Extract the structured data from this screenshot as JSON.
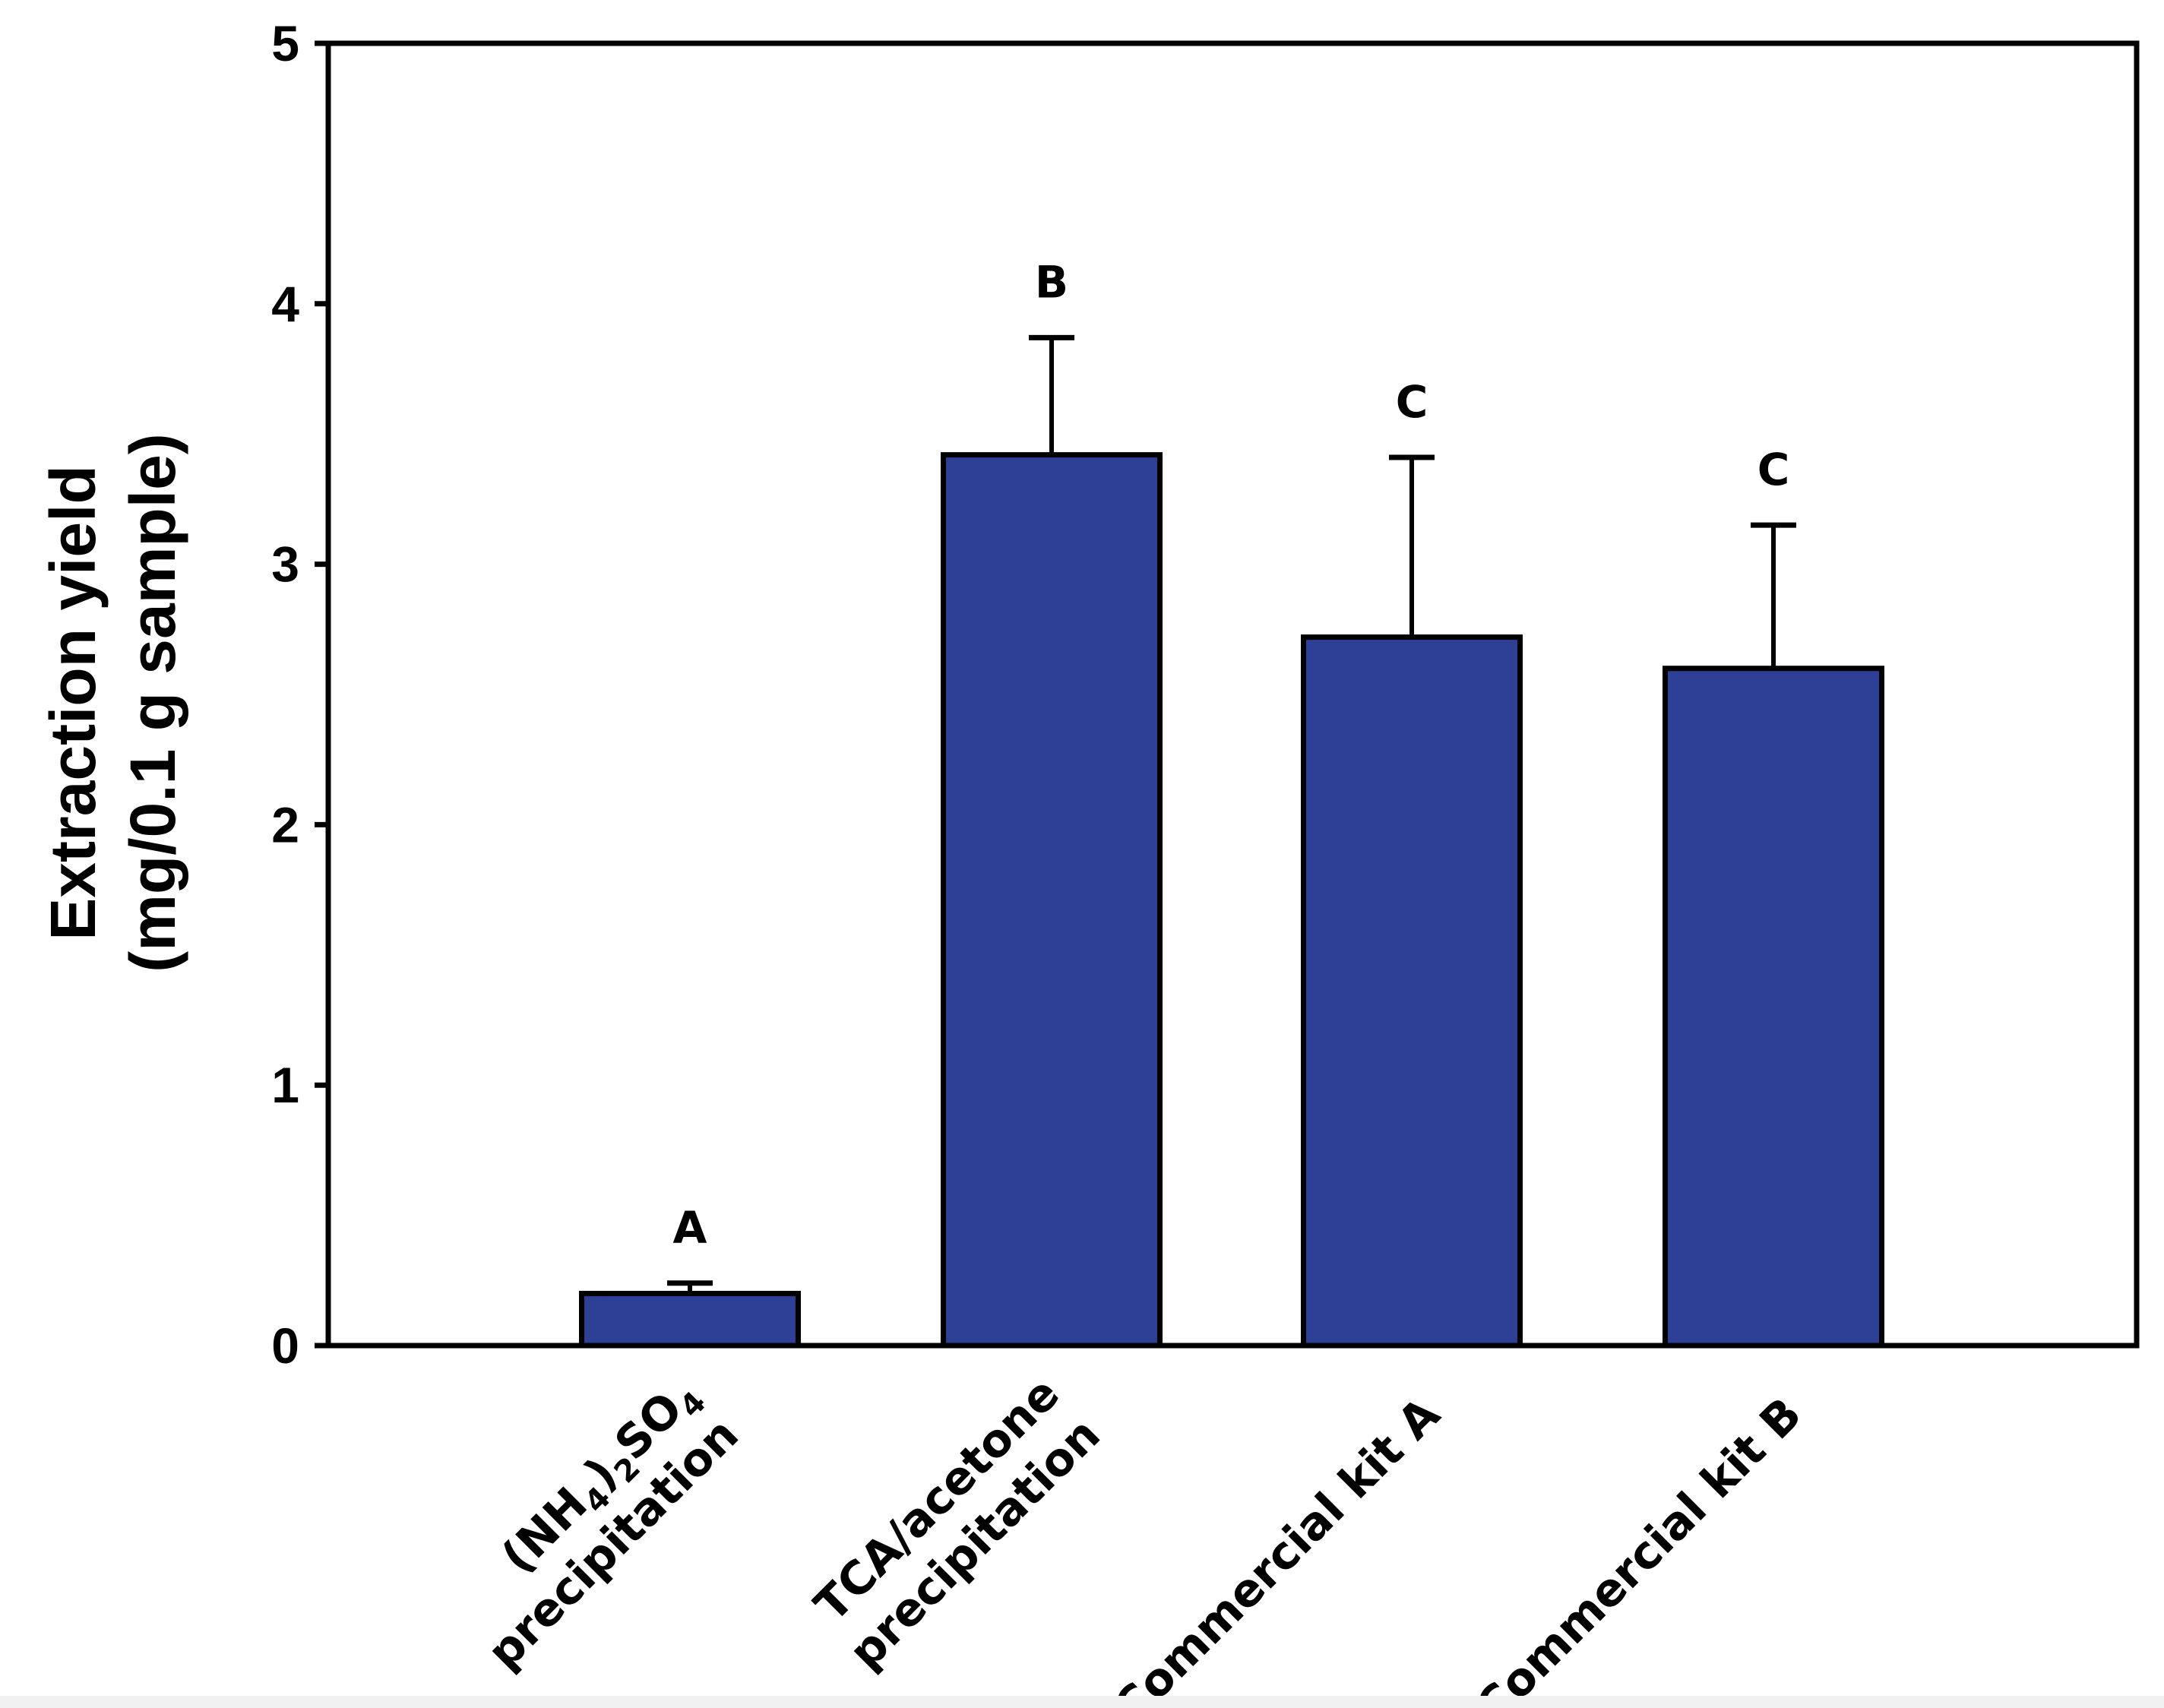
{
  "chart_data": {
    "type": "bar",
    "title": "",
    "xlabel": "",
    "ylabel_line1": "Extraction yield",
    "ylabel_line2": "(mg/0.1 g sample)",
    "ylim": [
      0,
      5
    ],
    "yticks": [
      0,
      1,
      2,
      3,
      4,
      5
    ],
    "categories": [
      {
        "lines": [
          [
            {
              "t": "(NH"
            },
            {
              "t": "4",
              "sub": true
            },
            {
              "t": ")"
            },
            {
              "t": "2",
              "sub": true
            },
            {
              "t": "SO"
            },
            {
              "t": "4",
              "sub": true
            }
          ],
          [
            {
              "t": "precipitation"
            }
          ]
        ]
      },
      {
        "lines": [
          [
            {
              "t": "TCA/acetone"
            }
          ],
          [
            {
              "t": "precipitation"
            }
          ]
        ]
      },
      {
        "lines": [
          [
            {
              "t": "Commercial kit A"
            }
          ]
        ]
      },
      {
        "lines": [
          [
            {
              "t": "Commercial kit B"
            }
          ]
        ]
      }
    ],
    "series": [
      {
        "name": "Extraction yield",
        "values": [
          0.2,
          3.42,
          2.72,
          2.6
        ],
        "errors": [
          0.04,
          0.45,
          0.69,
          0.55
        ],
        "significance": [
          "A",
          "B",
          "C",
          "C"
        ]
      }
    ],
    "colors": {
      "bar": "#2e4095",
      "edge": "#000000",
      "axis": "#000000"
    },
    "grid": false,
    "legend": "none"
  }
}
